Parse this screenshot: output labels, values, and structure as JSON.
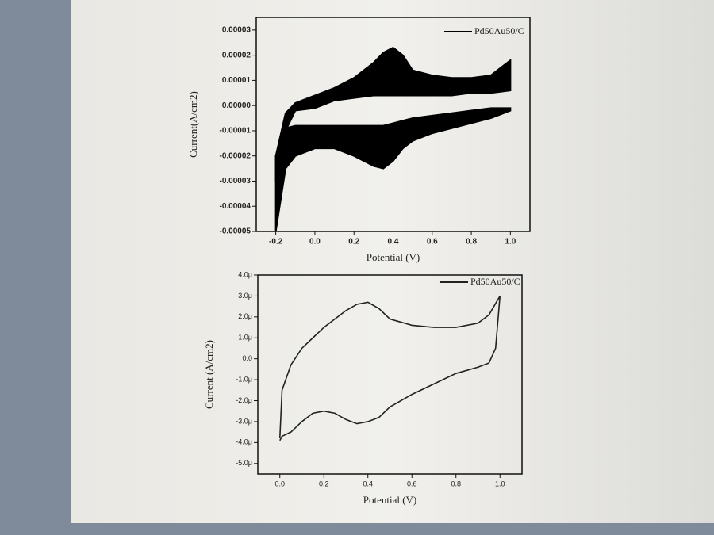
{
  "chart_data": [
    {
      "type": "area",
      "xlabel": "Potential (V)",
      "ylabel": "Current(A/cm2)",
      "x": [
        -0.2,
        -0.15,
        -0.1,
        0,
        0.1,
        0.2,
        0.3,
        0.35,
        0.4,
        0.45,
        0.5,
        0.6,
        0.7,
        0.8,
        0.9,
        1.0
      ],
      "series": [
        {
          "name": "Pd50Au50/C",
          "color": "#000000",
          "forward_high": [
            -2e-05,
            -3e-06,
            1e-06,
            4e-06,
            7e-06,
            1.1e-05,
            1.7e-05,
            2.1e-05,
            2.3e-05,
            2e-05,
            1.4e-05,
            1.2e-05,
            1.1e-05,
            1.1e-05,
            1.2e-05,
            1.8e-05
          ],
          "forward_low": [
            -3e-05,
            -1e-05,
            -2e-06,
            -1e-06,
            2e-06,
            3e-06,
            4e-06,
            4e-06,
            4e-06,
            4e-06,
            4e-06,
            4e-06,
            4e-06,
            5e-06,
            5e-06,
            6e-06
          ],
          "backward_high": [
            -2e-05,
            -9e-06,
            -8e-06,
            -8e-06,
            -8e-06,
            -8e-06,
            -8e-06,
            -8e-06,
            -7e-06,
            -6e-06,
            -5e-06,
            -4e-06,
            -3e-06,
            -2e-06,
            -1e-06,
            -1e-06
          ],
          "backward_low": [
            -5e-05,
            -2.5e-05,
            -2e-05,
            -1.7e-05,
            -1.7e-05,
            -2e-05,
            -2.4e-05,
            -2.5e-05,
            -2.2e-05,
            -1.7e-05,
            -1.4e-05,
            -1.1e-05,
            -9e-06,
            -7e-06,
            -5e-06,
            -2e-06
          ]
        }
      ],
      "xlim": [
        -0.3,
        1.1
      ],
      "ylim": [
        -5e-05,
        3.5e-05
      ],
      "xticks": [
        -0.2,
        {
          "value": 0,
          "label": "0.0"
        },
        0.2,
        0.4,
        0.6,
        0.8,
        {
          "value": 1,
          "label": "1.0"
        }
      ],
      "yticks": [
        {
          "value": 3e-05,
          "label": "0.00003"
        },
        {
          "value": 2e-05,
          "label": "0.00002"
        },
        {
          "value": 1e-05,
          "label": "0.00001"
        },
        {
          "value": 0,
          "label": "0.00000"
        },
        {
          "value": -1e-05,
          "label": "-0.00001"
        },
        {
          "value": -2e-05,
          "label": "-0.00002"
        },
        {
          "value": -3e-05,
          "label": "-0.00003"
        },
        {
          "value": -4e-05,
          "label": "-0.00004"
        },
        {
          "value": -5e-05,
          "label": "-0.00005"
        }
      ]
    },
    {
      "type": "line",
      "xlabel": "Potential (V)",
      "ylabel": "Current (A/cm2)",
      "x": [
        0,
        0.01,
        0.05,
        0.1,
        0.15,
        0.2,
        0.25,
        0.3,
        0.35,
        0.4,
        0.45,
        0.5,
        0.6,
        0.7,
        0.8,
        0.9,
        0.95,
        1.0,
        0.98,
        0.95,
        0.9,
        0.8,
        0.7,
        0.6,
        0.5,
        0.45,
        0.4,
        0.35,
        0.3,
        0.25,
        0.2,
        0.15,
        0.1,
        0.05,
        0.01,
        0
      ],
      "series": [
        {
          "name": "Pd50Au50/C",
          "color": "#222222",
          "values": [
            -3.8e-06,
            -1.5e-06,
            -3e-07,
            5e-07,
            1e-06,
            1.5e-06,
            1.9e-06,
            2.3e-06,
            2.6e-06,
            2.7e-06,
            2.4e-06,
            1.9e-06,
            1.6e-06,
            1.5e-06,
            1.5e-06,
            1.7e-06,
            2.1e-06,
            3e-06,
            5e-07,
            -2e-07,
            -4e-07,
            -7e-07,
            -1.2e-06,
            -1.7e-06,
            -2.3e-06,
            -2.8e-06,
            -3e-06,
            -3.1e-06,
            -2.9e-06,
            -2.6e-06,
            -2.5e-06,
            -2.6e-06,
            -3e-06,
            -3.5e-06,
            -3.7e-06,
            -3.9e-06
          ]
        }
      ],
      "xlim": [
        -0.1,
        1.1
      ],
      "ylim": [
        -5.5e-06,
        4e-06
      ],
      "xticks": [
        {
          "value": 0,
          "label": "0.0"
        },
        0.2,
        0.4,
        0.6,
        0.8,
        {
          "value": 1,
          "label": "1.0"
        }
      ],
      "yticks": [
        {
          "value": 4e-06,
          "label": "4.0μ"
        },
        {
          "value": 3e-06,
          "label": "3.0μ"
        },
        {
          "value": 2e-06,
          "label": "2.0μ"
        },
        {
          "value": 1e-06,
          "label": "1.0μ"
        },
        {
          "value": 0,
          "label": "0.0"
        },
        {
          "value": -1e-06,
          "label": "-1.0μ"
        },
        {
          "value": -2e-06,
          "label": "-2.0μ"
        },
        {
          "value": -3e-06,
          "label": "-3.0μ"
        },
        {
          "value": -4e-06,
          "label": "-4.0μ"
        },
        {
          "value": -5e-06,
          "label": "-5.0μ"
        }
      ]
    }
  ]
}
